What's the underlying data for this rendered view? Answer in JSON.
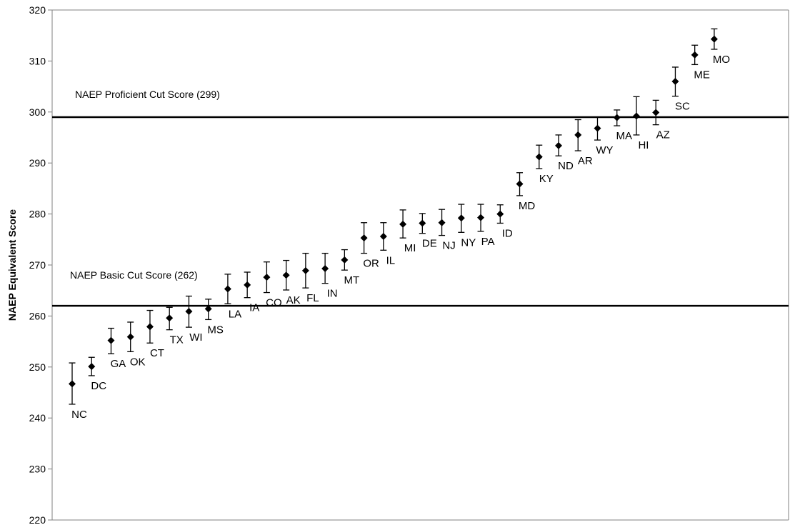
{
  "chart_data": {
    "type": "scatter",
    "ylabel": "NAEP Equivalent Score",
    "xlabel": "",
    "ylim": [
      220,
      320
    ],
    "yticks": [
      220,
      230,
      240,
      250,
      260,
      270,
      280,
      290,
      300,
      310,
      320
    ],
    "grid": false,
    "legend": "none",
    "marker": "diamond",
    "error_bars": true,
    "colors": {
      "marker": "#000000",
      "line": "#000000",
      "background": "#ffffff"
    },
    "reference_lines": [
      {
        "label": "NAEP Proficient Cut Score (299)",
        "value": 299
      },
      {
        "label": "NAEP Basic Cut Score (262)",
        "value": 262
      }
    ],
    "points": [
      {
        "state": "NC",
        "score": 246.7,
        "low": 242.7,
        "high": 250.8
      },
      {
        "state": "DC",
        "score": 250.1,
        "low": 248.3,
        "high": 251.9
      },
      {
        "state": "GA",
        "score": 255.2,
        "low": 252.6,
        "high": 257.6
      },
      {
        "state": "OK",
        "score": 255.9,
        "low": 253.0,
        "high": 258.8
      },
      {
        "state": "CT",
        "score": 257.9,
        "low": 254.7,
        "high": 261.1
      },
      {
        "state": "TX",
        "score": 259.6,
        "low": 257.3,
        "high": 261.7
      },
      {
        "state": "WI",
        "score": 260.9,
        "low": 257.8,
        "high": 263.9
      },
      {
        "state": "MS",
        "score": 261.4,
        "low": 259.3,
        "high": 263.3
      },
      {
        "state": "LA",
        "score": 265.3,
        "low": 262.4,
        "high": 268.2
      },
      {
        "state": "IA",
        "score": 266.1,
        "low": 263.6,
        "high": 268.6
      },
      {
        "state": "CO",
        "score": 267.6,
        "low": 264.6,
        "high": 270.6
      },
      {
        "state": "AK",
        "score": 268.0,
        "low": 265.1,
        "high": 270.9
      },
      {
        "state": "FL",
        "score": 268.9,
        "low": 265.5,
        "high": 272.3
      },
      {
        "state": "IN",
        "score": 269.3,
        "low": 266.4,
        "high": 272.3
      },
      {
        "state": "MT",
        "score": 271.0,
        "low": 269.0,
        "high": 273.0
      },
      {
        "state": "OR",
        "score": 275.3,
        "low": 272.3,
        "high": 278.3
      },
      {
        "state": "IL",
        "score": 275.6,
        "low": 272.9,
        "high": 278.3
      },
      {
        "state": "MI",
        "score": 278.0,
        "low": 275.3,
        "high": 280.8
      },
      {
        "state": "DE",
        "score": 278.2,
        "low": 276.2,
        "high": 280.1
      },
      {
        "state": "NJ",
        "score": 278.3,
        "low": 275.8,
        "high": 280.9
      },
      {
        "state": "NY",
        "score": 279.2,
        "low": 276.4,
        "high": 281.9
      },
      {
        "state": "PA",
        "score": 279.3,
        "low": 276.6,
        "high": 281.9
      },
      {
        "state": "ID",
        "score": 280.0,
        "low": 278.2,
        "high": 281.8
      },
      {
        "state": "MD",
        "score": 285.9,
        "low": 283.6,
        "high": 288.1
      },
      {
        "state": "KY",
        "score": 291.2,
        "low": 288.9,
        "high": 293.5
      },
      {
        "state": "ND",
        "score": 293.4,
        "low": 291.4,
        "high": 295.5
      },
      {
        "state": "AR",
        "score": 295.5,
        "low": 292.4,
        "high": 298.5
      },
      {
        "state": "WY",
        "score": 296.8,
        "low": 294.5,
        "high": 299.0
      },
      {
        "state": "MA",
        "score": 298.9,
        "low": 297.3,
        "high": 300.4
      },
      {
        "state": "HI",
        "score": 299.2,
        "low": 295.5,
        "high": 303.0
      },
      {
        "state": "AZ",
        "score": 299.9,
        "low": 297.5,
        "high": 302.3
      },
      {
        "state": "SC",
        "score": 306.0,
        "low": 303.1,
        "high": 308.8
      },
      {
        "state": "ME",
        "score": 311.2,
        "low": 309.3,
        "high": 313.1
      },
      {
        "state": "MO",
        "score": 314.3,
        "low": 312.3,
        "high": 316.3
      }
    ]
  }
}
